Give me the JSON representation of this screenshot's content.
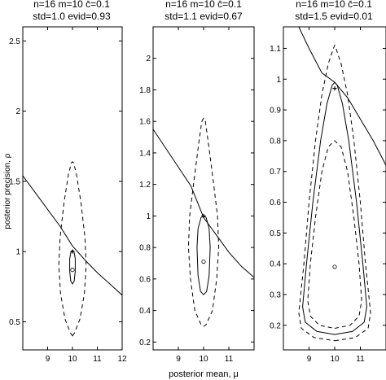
{
  "chart_data": [
    {
      "type": "line",
      "title_line1": "n̄=16  m̄=10  c̄=0.1",
      "title_line2": "std=1.0  evid=0.93",
      "xlabel": "",
      "ylabel": "posterior precision, ρ",
      "xlim": [
        8,
        12
      ],
      "ylim": [
        0.3,
        2.6
      ],
      "xticks": [
        9,
        10,
        11,
        12
      ],
      "yticks": [
        0.5,
        1,
        1.5,
        2,
        2.5
      ],
      "contours": [
        {
          "style": "dashed",
          "points": [
            [
              10.0,
              0.4
            ],
            [
              10.08,
              0.42
            ],
            [
              10.3,
              0.52
            ],
            [
              10.48,
              0.7
            ],
            [
              10.55,
              0.9
            ],
            [
              10.5,
              1.1
            ],
            [
              10.34,
              1.35
            ],
            [
              10.16,
              1.55
            ],
            [
              10.05,
              1.63
            ],
            [
              10.0,
              1.64
            ],
            [
              9.95,
              1.63
            ],
            [
              9.84,
              1.55
            ],
            [
              9.66,
              1.35
            ],
            [
              9.5,
              1.1
            ],
            [
              9.45,
              0.9
            ],
            [
              9.52,
              0.7
            ],
            [
              9.7,
              0.52
            ],
            [
              9.92,
              0.42
            ],
            [
              10.0,
              0.4
            ]
          ]
        },
        {
          "style": "solid",
          "points": [
            [
              10.0,
              0.77
            ],
            [
              10.07,
              0.79
            ],
            [
              10.11,
              0.86
            ],
            [
              10.11,
              0.95
            ],
            [
              10.06,
              1.0
            ],
            [
              10.0,
              1.01
            ],
            [
              9.94,
              1.0
            ],
            [
              9.89,
              0.95
            ],
            [
              9.89,
              0.86
            ],
            [
              9.93,
              0.79
            ],
            [
              10.0,
              0.77
            ]
          ]
        }
      ],
      "curve": [
        [
          8.0,
          1.54
        ],
        [
          8.5,
          1.42
        ],
        [
          9.0,
          1.3
        ],
        [
          9.5,
          1.18
        ],
        [
          10.0,
          1.04
        ],
        [
          10.5,
          0.94
        ],
        [
          11.0,
          0.85
        ],
        [
          11.5,
          0.77
        ],
        [
          12.0,
          0.69
        ]
      ],
      "markers": {
        "star": [
          10.0,
          1.0
        ],
        "circle": [
          10.0,
          0.87
        ]
      }
    },
    {
      "type": "line",
      "title_line1": "n̄=16  m̄=10  c̄=0.1",
      "title_line2": "std=1.1  evid=0.67",
      "xlabel": "posterior mean, μ",
      "ylabel": "",
      "xlim": [
        8,
        12
      ],
      "ylim": [
        0.15,
        2.2
      ],
      "xticks": [
        9,
        10,
        11
      ],
      "yticks": [
        0.2,
        0.4,
        0.6,
        0.8,
        1,
        1.2,
        1.4,
        1.6,
        1.8,
        2
      ],
      "contours": [
        {
          "style": "dashed",
          "points": [
            [
              10.0,
              0.3
            ],
            [
              10.1,
              0.31
            ],
            [
              10.35,
              0.4
            ],
            [
              10.52,
              0.6
            ],
            [
              10.6,
              0.8
            ],
            [
              10.55,
              1.0
            ],
            [
              10.4,
              1.2
            ],
            [
              10.2,
              1.45
            ],
            [
              10.07,
              1.6
            ],
            [
              10.0,
              1.62
            ],
            [
              9.93,
              1.6
            ],
            [
              9.8,
              1.45
            ],
            [
              9.6,
              1.2
            ],
            [
              9.45,
              1.0
            ],
            [
              9.4,
              0.8
            ],
            [
              9.48,
              0.6
            ],
            [
              9.65,
              0.4
            ],
            [
              9.9,
              0.31
            ],
            [
              10.0,
              0.3
            ]
          ]
        },
        {
          "style": "solid",
          "points": [
            [
              10.0,
              0.5
            ],
            [
              10.12,
              0.52
            ],
            [
              10.22,
              0.62
            ],
            [
              10.26,
              0.8
            ],
            [
              10.22,
              0.92
            ],
            [
              10.1,
              0.99
            ],
            [
              10.0,
              1.0
            ],
            [
              9.9,
              0.99
            ],
            [
              9.78,
              0.92
            ],
            [
              9.74,
              0.8
            ],
            [
              9.78,
              0.62
            ],
            [
              9.88,
              0.52
            ],
            [
              10.0,
              0.5
            ]
          ]
        }
      ],
      "curve": [
        [
          8.0,
          1.55
        ],
        [
          8.5,
          1.43
        ],
        [
          9.0,
          1.31
        ],
        [
          9.5,
          1.19
        ],
        [
          10.0,
          0.99
        ],
        [
          10.5,
          0.88
        ],
        [
          11.0,
          0.77
        ],
        [
          11.5,
          0.68
        ],
        [
          12.0,
          0.61
        ]
      ],
      "markers": {
        "star": [
          10.0,
          1.0
        ],
        "circle": [
          10.0,
          0.71
        ]
      }
    },
    {
      "type": "line",
      "title_line1": "n̄=16  m̄=10  c̄=0.1",
      "title_line2": "std=1.5  evid=0.01",
      "xlabel": "",
      "ylabel": "",
      "xlim": [
        8,
        12
      ],
      "ylim": [
        0.12,
        1.17
      ],
      "xticks": [
        9,
        10,
        11
      ],
      "yticks": [
        0.2,
        0.3,
        0.4,
        0.5,
        0.6,
        0.7,
        0.8,
        0.9,
        1,
        1.1
      ],
      "contours": [
        {
          "style": "dashed",
          "points": [
            [
              10.0,
              0.15
            ],
            [
              10.8,
              0.16
            ],
            [
              11.3,
              0.19
            ],
            [
              11.4,
              0.24
            ],
            [
              11.2,
              0.4
            ],
            [
              11.0,
              0.6
            ],
            [
              10.75,
              0.8
            ],
            [
              10.5,
              0.95
            ],
            [
              10.25,
              1.05
            ],
            [
              10.05,
              1.1
            ],
            [
              10.0,
              1.11
            ],
            [
              9.95,
              1.1
            ],
            [
              9.75,
              1.05
            ],
            [
              9.5,
              0.95
            ],
            [
              9.25,
              0.8
            ],
            [
              9.0,
              0.6
            ],
            [
              8.8,
              0.4
            ],
            [
              8.6,
              0.24
            ],
            [
              8.7,
              0.19
            ],
            [
              9.2,
              0.16
            ],
            [
              10.0,
              0.15
            ]
          ]
        },
        {
          "style": "solid",
          "points": [
            [
              10.0,
              0.17
            ],
            [
              10.7,
              0.18
            ],
            [
              11.15,
              0.21
            ],
            [
              11.25,
              0.26
            ],
            [
              11.1,
              0.4
            ],
            [
              10.85,
              0.6
            ],
            [
              10.55,
              0.8
            ],
            [
              10.3,
              0.92
            ],
            [
              10.1,
              0.98
            ],
            [
              10.0,
              0.99
            ],
            [
              9.9,
              0.98
            ],
            [
              9.7,
              0.92
            ],
            [
              9.45,
              0.8
            ],
            [
              9.15,
              0.6
            ],
            [
              8.9,
              0.4
            ],
            [
              8.75,
              0.26
            ],
            [
              8.85,
              0.21
            ],
            [
              9.3,
              0.18
            ],
            [
              10.0,
              0.17
            ]
          ]
        },
        {
          "style": "dashed",
          "points": [
            [
              10.0,
              0.19
            ],
            [
              10.6,
              0.2
            ],
            [
              10.95,
              0.23
            ],
            [
              11.05,
              0.28
            ],
            [
              10.95,
              0.4
            ],
            [
              10.75,
              0.55
            ],
            [
              10.5,
              0.7
            ],
            [
              10.25,
              0.78
            ],
            [
              10.0,
              0.8
            ],
            [
              9.75,
              0.78
            ],
            [
              9.5,
              0.7
            ],
            [
              9.25,
              0.55
            ],
            [
              9.05,
              0.4
            ],
            [
              8.95,
              0.28
            ],
            [
              9.05,
              0.23
            ],
            [
              9.4,
              0.2
            ],
            [
              10.0,
              0.19
            ]
          ]
        }
      ],
      "curve": [
        [
          8.6,
          1.17
        ],
        [
          9.0,
          1.1
        ],
        [
          9.5,
          1.02
        ],
        [
          10.0,
          0.99
        ],
        [
          10.5,
          0.94
        ],
        [
          11.0,
          0.87
        ],
        [
          11.5,
          0.8
        ],
        [
          12.0,
          0.72
        ]
      ],
      "markers": {
        "star": [
          10.0,
          0.97
        ],
        "circle": [
          10.0,
          0.39
        ]
      }
    }
  ]
}
